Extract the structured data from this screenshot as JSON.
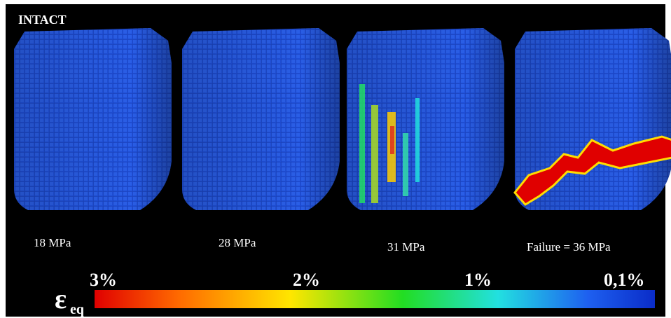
{
  "header": {
    "title": "INTACT"
  },
  "panels": [
    {
      "label": "18 MPa"
    },
    {
      "label": "28 MPa"
    },
    {
      "label": "31 MPa"
    },
    {
      "label": "Failure = 36 MPa"
    }
  ],
  "colorbar": {
    "symbol": "ε",
    "subscript": "eq",
    "labels": [
      "3%",
      "2%",
      "1%",
      "0,1%"
    ]
  }
}
